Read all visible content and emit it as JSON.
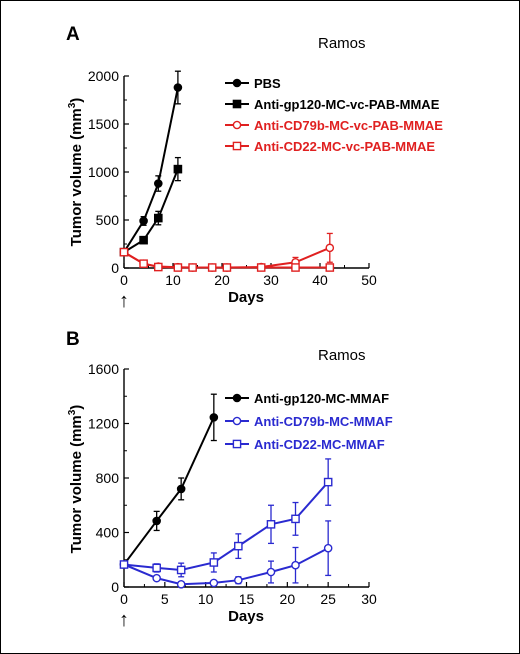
{
  "chart_data": [
    {
      "panel_letter": "A",
      "type": "line",
      "title": "Ramos",
      "xlabel": "Days",
      "ylabel": "Tumor volume (mm3)",
      "ylabel_main": "Tumor volume (mm",
      "ylabel_sup": "3",
      "ylabel_tail": ")",
      "xlim": [
        0,
        50
      ],
      "ylim": [
        0,
        2000
      ],
      "xticks": [
        0,
        10,
        20,
        30,
        40,
        50
      ],
      "yticks": [
        0,
        500,
        1000,
        1500,
        2000
      ],
      "dosing_marker": "↑",
      "dosing_day": 0,
      "grid": false,
      "legend_position": "top-right",
      "series": [
        {
          "name": "PBS",
          "color": "#000000",
          "marker": "circle",
          "fill": true,
          "x": [
            0,
            4,
            7,
            11
          ],
          "y": [
            165,
            490,
            880,
            1880
          ],
          "err": [
            0,
            45,
            80,
            170
          ]
        },
        {
          "name": "Anti-gp120-MC-vc-PAB-MMAE",
          "color": "#000000",
          "marker": "square",
          "fill": true,
          "x": [
            0,
            4,
            7,
            11
          ],
          "y": [
            165,
            290,
            520,
            1030
          ],
          "err": [
            0,
            30,
            70,
            120
          ]
        },
        {
          "name": "Anti-CD79b-MC-vc-PAB-MMAE",
          "color": "#e02020",
          "marker": "circle",
          "fill": false,
          "x": [
            0,
            4,
            7,
            11,
            14,
            18,
            21,
            28,
            35,
            42
          ],
          "y": [
            165,
            45,
            15,
            8,
            5,
            5,
            5,
            10,
            60,
            210
          ],
          "err": [
            0,
            10,
            5,
            3,
            2,
            2,
            2,
            8,
            50,
            150
          ]
        },
        {
          "name": "Anti-CD22-MC-vc-PAB-MMAE",
          "color": "#e02020",
          "marker": "square",
          "fill": false,
          "x": [
            0,
            4,
            7,
            11,
            14,
            18,
            21,
            28,
            35,
            42
          ],
          "y": [
            165,
            45,
            10,
            5,
            5,
            5,
            5,
            5,
            5,
            5
          ],
          "err": [
            0,
            8,
            4,
            2,
            2,
            2,
            2,
            2,
            2,
            2
          ]
        }
      ]
    },
    {
      "panel_letter": "B",
      "type": "line",
      "title": "Ramos",
      "xlabel": "Days",
      "ylabel": "Tumor volume (mm3)",
      "ylabel_main": "Tumor volume (mm",
      "ylabel_sup": "3",
      "ylabel_tail": ")",
      "xlim": [
        0,
        30
      ],
      "ylim": [
        0,
        1600
      ],
      "xticks": [
        0,
        5,
        10,
        15,
        20,
        25,
        30
      ],
      "yticks": [
        0,
        400,
        800,
        1200,
        1600
      ],
      "dosing_marker": "↑",
      "dosing_day": 0,
      "grid": false,
      "legend_position": "top-right",
      "series": [
        {
          "name": "Anti-gp120-MC-MMAF",
          "color": "#000000",
          "marker": "circle",
          "fill": true,
          "x": [
            0,
            4,
            7,
            11
          ],
          "y": [
            165,
            485,
            720,
            1245
          ],
          "err": [
            0,
            70,
            80,
            170
          ]
        },
        {
          "name": "Anti-CD79b-MC-MMAF",
          "color": "#2a2ad0",
          "marker": "circle",
          "fill": false,
          "x": [
            0,
            4,
            7,
            11,
            14,
            18,
            21,
            25
          ],
          "y": [
            165,
            65,
            20,
            30,
            50,
            110,
            160,
            285
          ],
          "err": [
            0,
            15,
            10,
            15,
            25,
            80,
            130,
            200
          ]
        },
        {
          "name": "Anti-CD22-MC-MMAF",
          "color": "#2a2ad0",
          "marker": "square",
          "fill": false,
          "x": [
            0,
            4,
            7,
            11,
            14,
            18,
            21,
            25
          ],
          "y": [
            165,
            140,
            125,
            180,
            300,
            460,
            500,
            770
          ],
          "err": [
            0,
            30,
            50,
            70,
            90,
            140,
            120,
            170
          ]
        }
      ]
    }
  ]
}
